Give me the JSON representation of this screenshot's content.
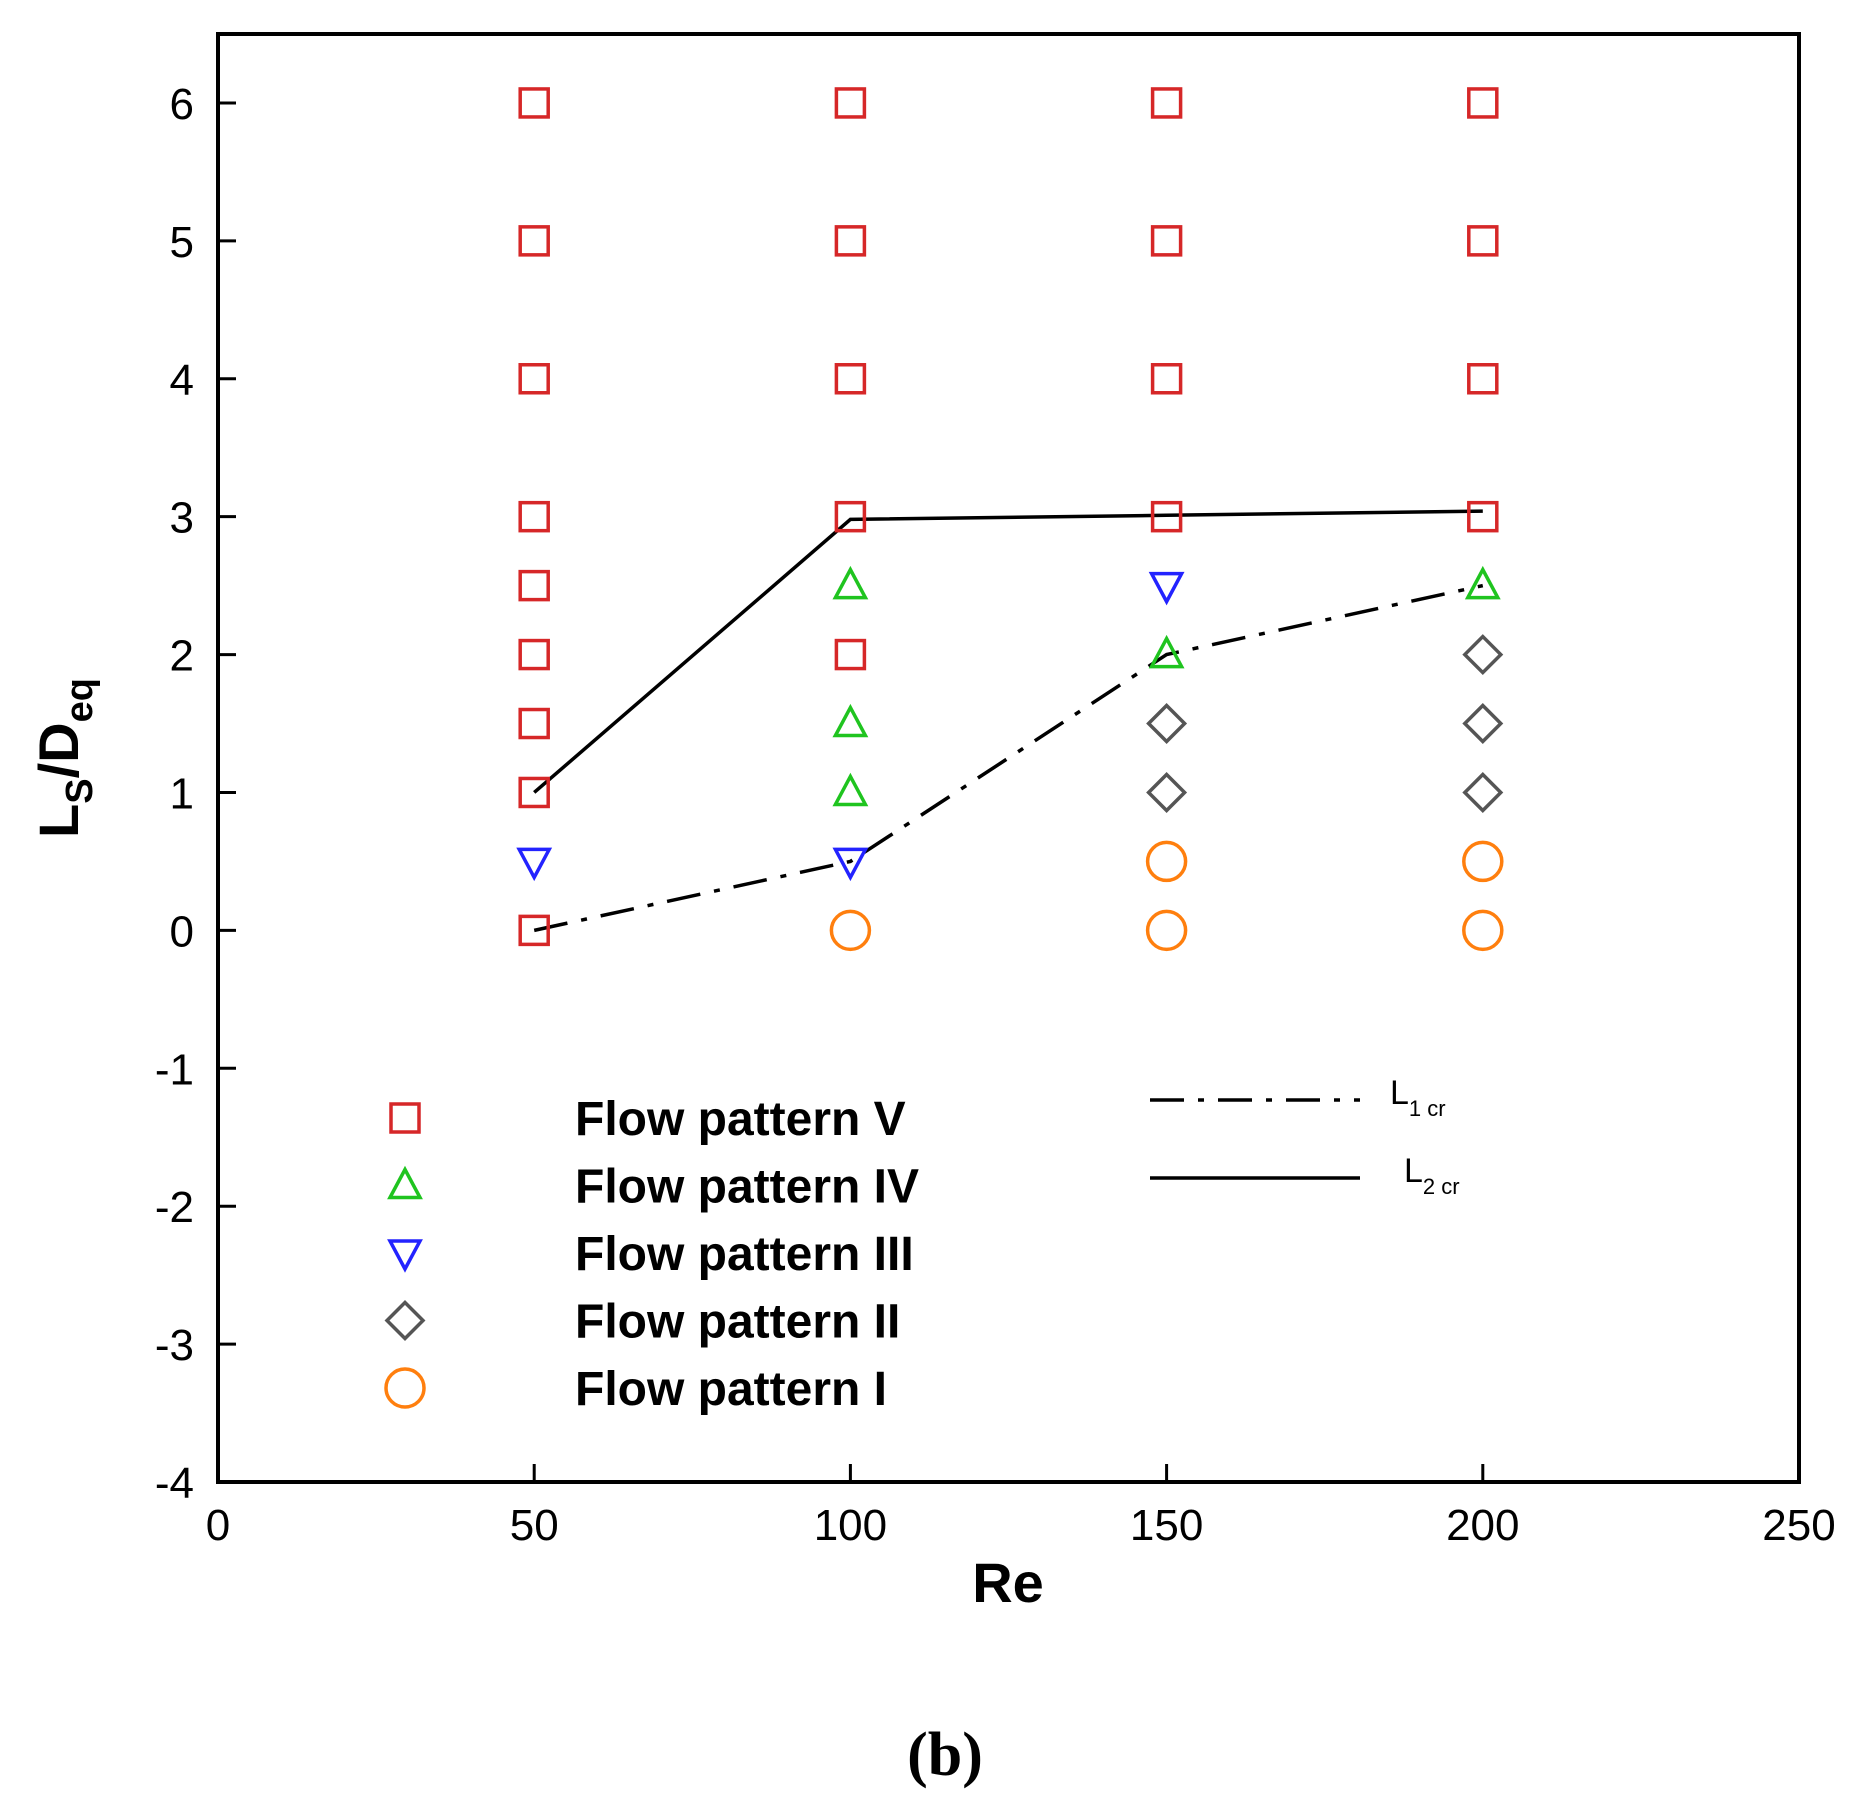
{
  "chart_data": {
    "type": "scatter",
    "title": "",
    "xlabel": "Re",
    "ylabel": {
      "base": "L",
      "sub1": "S",
      "mid": "/D",
      "sub2": "eq"
    },
    "xlim": [
      0,
      250
    ],
    "ylim": [
      -4,
      6.5
    ],
    "xticks": [
      0,
      50,
      100,
      150,
      200,
      250
    ],
    "yticks": [
      -4,
      -3,
      -2,
      -1,
      0,
      1,
      2,
      3,
      4,
      5,
      6
    ],
    "grid": false,
    "caption": "(b)",
    "series": [
      {
        "name": "Flow pattern V",
        "marker": "square",
        "color": "#d62728",
        "points": [
          [
            50,
            0
          ],
          [
            50,
            1
          ],
          [
            50,
            1.5
          ],
          [
            50,
            2
          ],
          [
            50,
            2.5
          ],
          [
            50,
            3
          ],
          [
            50,
            4
          ],
          [
            50,
            5
          ],
          [
            50,
            6
          ],
          [
            100,
            2
          ],
          [
            100,
            3
          ],
          [
            100,
            4
          ],
          [
            100,
            5
          ],
          [
            100,
            6
          ],
          [
            150,
            3
          ],
          [
            150,
            4
          ],
          [
            150,
            5
          ],
          [
            150,
            6
          ],
          [
            200,
            3
          ],
          [
            200,
            4
          ],
          [
            200,
            5
          ],
          [
            200,
            6
          ]
        ]
      },
      {
        "name": "Flow pattern IV",
        "marker": "triangle-up",
        "color": "#1fc41f",
        "points": [
          [
            100,
            1
          ],
          [
            100,
            1.5
          ],
          [
            100,
            2.5
          ],
          [
            150,
            2
          ],
          [
            200,
            2.5
          ]
        ]
      },
      {
        "name": "Flow pattern III",
        "marker": "triangle-down",
        "color": "#2323ff",
        "points": [
          [
            50,
            0.5
          ],
          [
            100,
            0.5
          ],
          [
            150,
            2.5
          ]
        ]
      },
      {
        "name": "Flow pattern II",
        "marker": "diamond",
        "color": "#555555",
        "points": [
          [
            150,
            1
          ],
          [
            150,
            1.5
          ],
          [
            200,
            1
          ],
          [
            200,
            1.5
          ],
          [
            200,
            2
          ]
        ]
      },
      {
        "name": "Flow pattern I",
        "marker": "circle",
        "color": "#ff7f0e",
        "points": [
          [
            100,
            0
          ],
          [
            150,
            0
          ],
          [
            150,
            0.5
          ],
          [
            200,
            0
          ],
          [
            200,
            0.5
          ]
        ]
      }
    ],
    "lines": [
      {
        "name": "L1 cr",
        "label_base": "L",
        "label_sub": "1 cr",
        "style": "dashdot",
        "color": "#000000",
        "points": [
          [
            50,
            0
          ],
          [
            100,
            0.5
          ],
          [
            150,
            2
          ],
          [
            200,
            2.5
          ]
        ]
      },
      {
        "name": "L2 cr",
        "label_base": "L",
        "label_sub": "2 cr",
        "style": "solid",
        "color": "#000000",
        "points": [
          [
            50,
            1
          ],
          [
            100,
            2.98
          ],
          [
            150,
            3.01
          ],
          [
            200,
            3.04
          ]
        ]
      }
    ],
    "legend_position": "lower-left",
    "line_legend_position": "lower-right"
  }
}
